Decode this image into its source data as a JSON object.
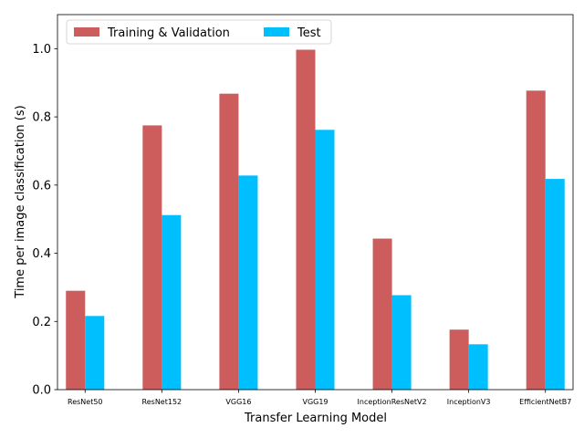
{
  "chart_data": {
    "type": "bar",
    "categories": [
      "ResNet50",
      "ResNet152",
      "VGG16",
      "VGG19",
      "InceptionResNetV2",
      "InceptionV3",
      "EfficientNetB7"
    ],
    "series": [
      {
        "name": "Training & Validation",
        "color": "#cd5c5c",
        "values": [
          0.29,
          0.775,
          0.868,
          0.997,
          0.443,
          0.176,
          0.877
        ]
      },
      {
        "name": "Test",
        "color": "#00bfff",
        "values": [
          0.216,
          0.512,
          0.628,
          0.762,
          0.277,
          0.133,
          0.618
        ]
      }
    ],
    "title": "",
    "xlabel": "Transfer Learning Model",
    "ylabel": "Time per image classification (s)",
    "ylim": [
      0,
      1.1
    ],
    "yticks": [
      "0.0",
      "0.2",
      "0.4",
      "0.6",
      "0.8",
      "1.0"
    ],
    "legend_position": "top-left",
    "grid": false
  }
}
